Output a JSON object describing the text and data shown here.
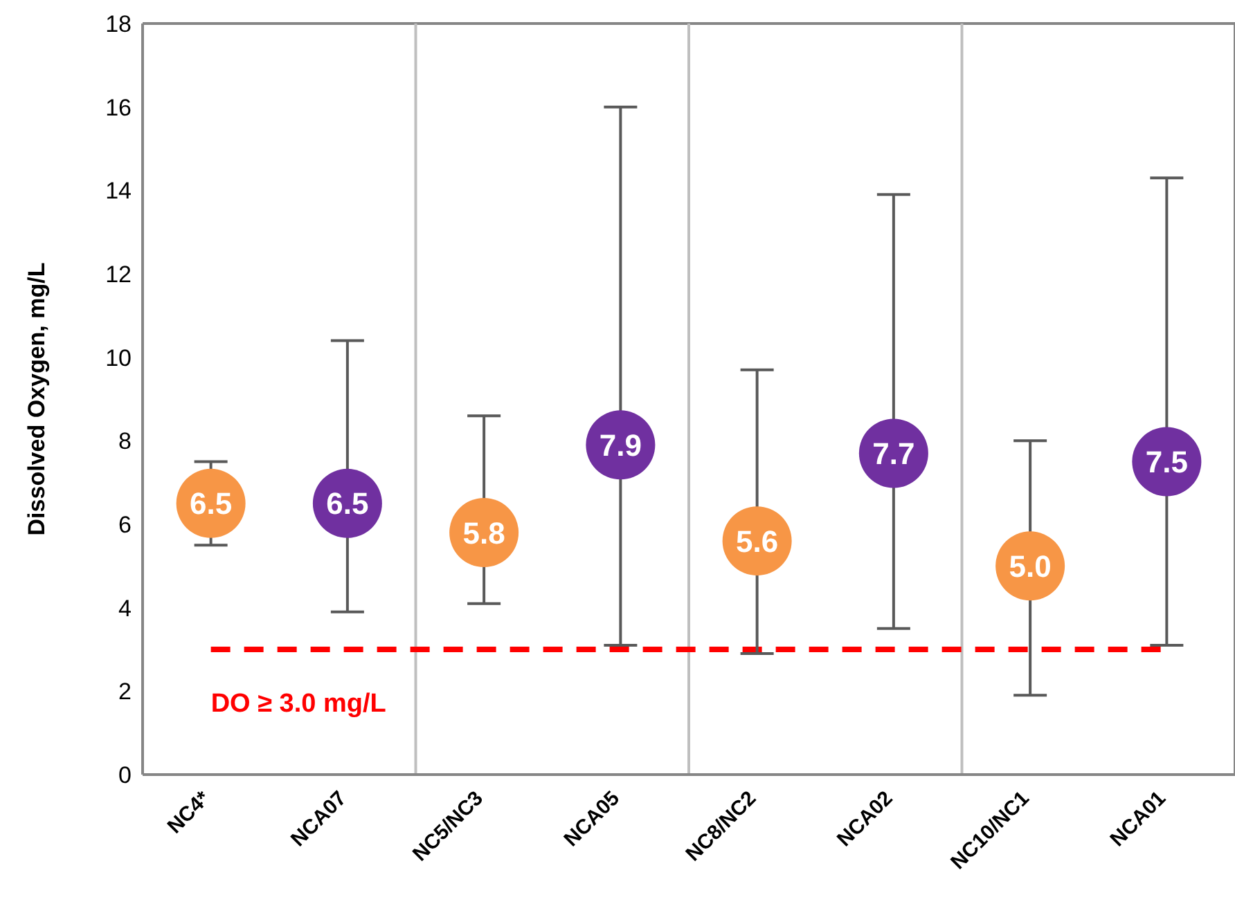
{
  "chart_data": {
    "type": "scatter",
    "ylabel": "Dissolved Oxygen, mg/L",
    "categories": [
      "NC4*",
      "NCA07",
      "NC5/NC3",
      "NCA05",
      "NC8/NC2",
      "NCA02",
      "NC10/NC1",
      "NCA01"
    ],
    "series": [
      {
        "color": "#f79646",
        "values": [
          6.5,
          null,
          5.8,
          null,
          5.6,
          null,
          5.0,
          null
        ],
        "value_labels": [
          "6.5",
          null,
          "5.8",
          null,
          "5.6",
          null,
          "5.0",
          null
        ],
        "errors": [
          [
            5.5,
            7.5
          ],
          null,
          [
            4.1,
            8.6
          ],
          null,
          [
            2.9,
            9.7
          ],
          null,
          [
            1.9,
            8.0
          ],
          null
        ]
      },
      {
        "color": "#7030a0",
        "values": [
          null,
          6.5,
          null,
          7.9,
          null,
          7.7,
          null,
          7.5
        ],
        "value_labels": [
          null,
          "6.5",
          null,
          "7.9",
          null,
          "7.7",
          null,
          "7.5"
        ],
        "errors": [
          null,
          [
            3.9,
            10.4
          ],
          null,
          [
            3.1,
            16.0
          ],
          null,
          [
            3.5,
            13.9
          ],
          null,
          [
            3.1,
            14.3
          ]
        ]
      }
    ],
    "ylim": [
      0,
      18
    ],
    "yticks": [
      0,
      2,
      4,
      6,
      8,
      10,
      12,
      14,
      16,
      18
    ],
    "grid": "x",
    "marker": "circle",
    "ref_lines": [
      {
        "axis": "y",
        "value": 3.0,
        "label": "DO ≥  3.0 mg/L",
        "color": "#ff0000",
        "line_style": "dashed"
      }
    ]
  }
}
